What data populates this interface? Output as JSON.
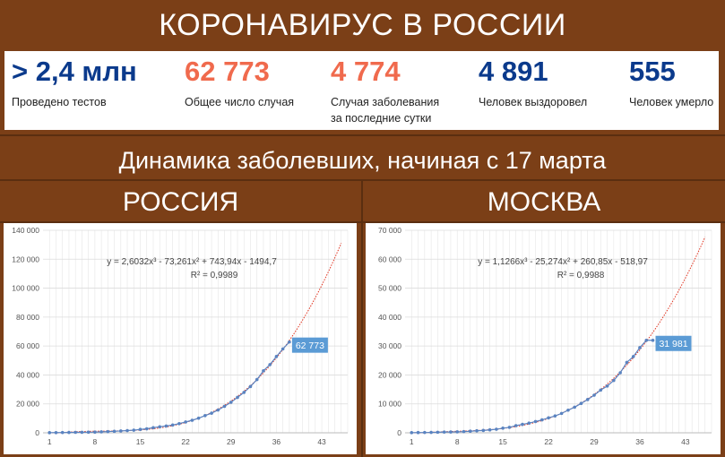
{
  "header": {
    "title": "КОРОНАВИРУС В РОССИИ"
  },
  "stats": [
    {
      "value": "> 2,4 млн",
      "label_lines": [
        "Проведено тестов"
      ],
      "color": "#0b3a8c"
    },
    {
      "value": "62 773",
      "label_lines": [
        "Общее число случая"
      ],
      "color": "#f06a4d"
    },
    {
      "value": "4 774",
      "label_lines": [
        "Случая заболевания",
        "за последние сутки"
      ],
      "color": "#f06a4d"
    },
    {
      "value": "4 891",
      "label_lines": [
        "Человек выздоровел"
      ],
      "color": "#0b3a8c"
    },
    {
      "value": "555",
      "label_lines": [
        "Человек умерло"
      ],
      "color": "#0b3a8c"
    }
  ],
  "subtitle": "Динамика заболевших, начиная с 17 марта",
  "chart_data": [
    {
      "type": "scatter",
      "title": "РОССИЯ",
      "xlabel": "",
      "ylabel": "",
      "x_ticks": [
        1,
        8,
        15,
        22,
        29,
        36,
        43
      ],
      "y_ticks": [
        "0",
        "20 000",
        "40 000",
        "60 000",
        "80 000",
        "100 000",
        "120 000",
        "140 000"
      ],
      "y_tick_values": [
        0,
        20000,
        40000,
        60000,
        80000,
        100000,
        120000,
        140000
      ],
      "xlim": [
        0,
        47
      ],
      "ylim": [
        0,
        140000
      ],
      "grid": true,
      "x": [
        1,
        2,
        3,
        4,
        5,
        6,
        7,
        8,
        9,
        10,
        11,
        12,
        13,
        14,
        15,
        16,
        17,
        18,
        19,
        20,
        21,
        22,
        23,
        24,
        25,
        26,
        27,
        28,
        29,
        30,
        31,
        32,
        33,
        34,
        35,
        36,
        37,
        38
      ],
      "values": [
        114,
        147,
        199,
        253,
        306,
        367,
        438,
        495,
        658,
        840,
        1036,
        1264,
        1534,
        1836,
        2337,
        2777,
        3548,
        4149,
        4731,
        5389,
        6343,
        7497,
        8672,
        10131,
        11917,
        13584,
        15770,
        18328,
        21102,
        24490,
        27938,
        32008,
        36793,
        42853,
        47121,
        52763,
        57999,
        62773
      ],
      "trendline": {
        "type": "poly3",
        "coefficients": [
          2.6032,
          -73.261,
          743.94,
          -1494.7
        ],
        "x_range": [
          1,
          46
        ]
      },
      "series_color": "#5a83c0",
      "trend_color": "#e0321e",
      "annotations": [
        {
          "text": "y = 2,6032x³ - 73,261x² + 743,94x - 1494,7"
        },
        {
          "text": "R² = 0,9989"
        }
      ],
      "data_label": {
        "text": "62 773",
        "color": "#5b9bd5"
      }
    },
    {
      "type": "scatter",
      "title": "МОСКВА",
      "xlabel": "",
      "ylabel": "",
      "x_ticks": [
        1,
        8,
        15,
        22,
        29,
        36,
        43
      ],
      "y_ticks": [
        "0",
        "10 000",
        "20 000",
        "30 000",
        "40 000",
        "50 000",
        "60 000",
        "70 000"
      ],
      "y_tick_values": [
        0,
        10000,
        20000,
        30000,
        40000,
        50000,
        60000,
        70000
      ],
      "xlim": [
        0,
        47
      ],
      "ylim": [
        0,
        70000
      ],
      "grid": true,
      "x": [
        1,
        2,
        3,
        4,
        5,
        6,
        7,
        8,
        9,
        10,
        11,
        12,
        13,
        14,
        15,
        16,
        17,
        18,
        19,
        20,
        21,
        22,
        23,
        24,
        25,
        26,
        27,
        28,
        29,
        30,
        31,
        32,
        33,
        34,
        35,
        36,
        37,
        38
      ],
      "values": [
        53,
        86,
        98,
        137,
        191,
        262,
        290,
        339,
        410,
        546,
        703,
        817,
        1014,
        1226,
        1613,
        1880,
        2475,
        2923,
        3357,
        3893,
        4484,
        5181,
        5841,
        6698,
        7822,
        8852,
        10158,
        11513,
        13002,
        14776,
        16146,
        18105,
        20754,
        24324,
        26350,
        29433,
        31981,
        31981
      ],
      "trendline": {
        "type": "poly3",
        "coefficients": [
          1.1266,
          -25.274,
          260.85,
          -518.97
        ],
        "x_range": [
          1,
          46
        ]
      },
      "series_color": "#5a83c0",
      "trend_color": "#e0321e",
      "annotations": [
        {
          "text": "y = 1,1266x³ - 25,274x² + 260,85x - 518,97"
        },
        {
          "text": "R² = 0,9988"
        }
      ],
      "data_label": {
        "text": "31 981",
        "color": "#5b9bd5"
      }
    }
  ]
}
